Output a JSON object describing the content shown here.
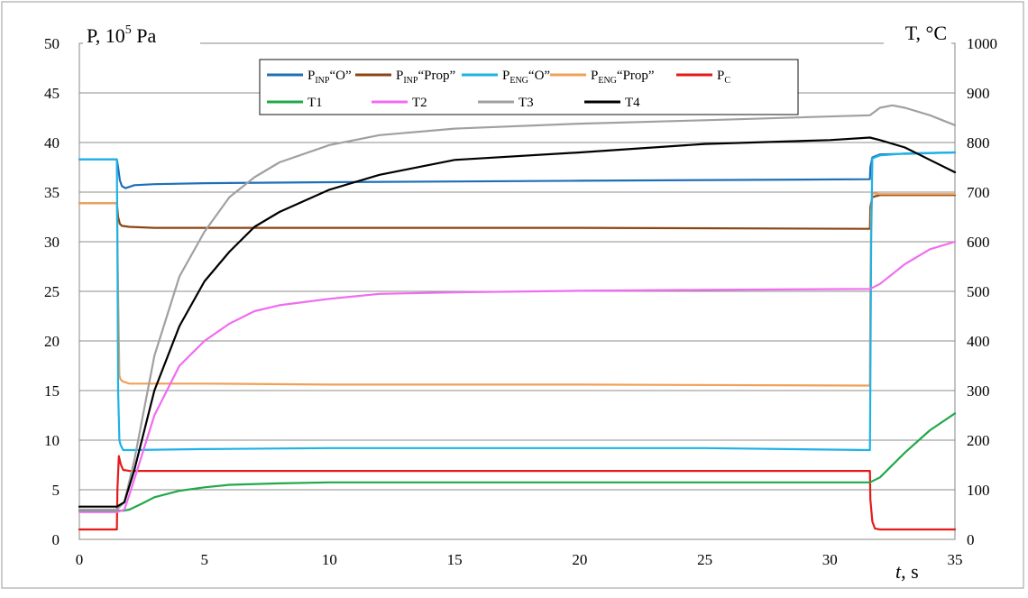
{
  "chart_data": {
    "type": "line",
    "title": "",
    "xlabel": {
      "italic": "t",
      "rest": ", s"
    },
    "ylabel_left": {
      "main": "P, 10",
      "sup": "5",
      "unit": " Pa"
    },
    "ylabel_right": "T, °C",
    "xlim": [
      0,
      35
    ],
    "ylim_left": [
      0,
      50
    ],
    "ylim_right": [
      0,
      1000
    ],
    "x_ticks": [
      "0",
      "5",
      "10",
      "15",
      "20",
      "25",
      "30"
    ],
    "x_tick_last": "35",
    "y_ticks_left": [
      "0",
      "5",
      "10",
      "15",
      "20",
      "25",
      "30",
      "35",
      "40",
      "45",
      "50"
    ],
    "y_ticks_right": [
      "0",
      "100",
      "200",
      "300",
      "400",
      "500",
      "600",
      "700",
      "800",
      "900",
      "1000"
    ],
    "grid": {
      "horizontal": true,
      "vertical": false
    },
    "legend_position": "top-center",
    "series": [
      {
        "name": "P_INP “O”",
        "label_main": "P",
        "label_sub": "INP",
        "label_tail": "“O”",
        "axis": "left",
        "color": "#1F6FB8",
        "x": [
          0,
          1.5,
          1.55,
          1.62,
          1.7,
          1.85,
          2.2,
          3,
          5,
          10,
          20,
          31.6,
          31.62,
          31.7,
          32,
          35
        ],
        "y": [
          38.3,
          38.3,
          37.5,
          36.2,
          35.6,
          35.4,
          35.7,
          35.8,
          35.9,
          36.0,
          36.15,
          36.3,
          37.5,
          38.5,
          38.8,
          39.0
        ]
      },
      {
        "name": "P_INP “Prop”",
        "label_main": "P",
        "label_sub": "INP",
        "label_tail": "“Prop”",
        "axis": "left",
        "color": "#8B4513",
        "x": [
          0,
          1.5,
          1.55,
          1.62,
          1.7,
          2.0,
          3,
          5,
          10,
          20,
          31.6,
          31.62,
          31.7,
          32,
          35
        ],
        "y": [
          33.9,
          33.9,
          32.5,
          31.8,
          31.6,
          31.5,
          31.4,
          31.4,
          31.4,
          31.4,
          31.3,
          33.5,
          34.5,
          34.7,
          34.7
        ]
      },
      {
        "name": "P_ENG “O”",
        "label_main": "P",
        "label_sub": "ENG",
        "label_tail": "“O”",
        "axis": "left",
        "color": "#1EB2E6",
        "x": [
          0,
          1.5,
          1.52,
          1.55,
          1.6,
          1.65,
          1.75,
          2.0,
          5,
          10,
          15,
          20,
          25,
          31.6,
          31.62,
          31.65,
          31.7,
          32,
          33,
          35
        ],
        "y": [
          38.3,
          38.3,
          30,
          15,
          10,
          9.5,
          9.0,
          9.0,
          9.1,
          9.2,
          9.2,
          9.2,
          9.2,
          9.0,
          16,
          30,
          38.4,
          38.7,
          38.9,
          39.0
        ]
      },
      {
        "name": "P_ENG “Prop”",
        "label_main": "P",
        "label_sub": "ENG",
        "label_tail": "“Prop”",
        "axis": "left",
        "color": "#F0A058",
        "x": [
          0,
          1.5,
          1.55,
          1.6,
          1.65,
          1.75,
          2.0,
          5,
          10,
          20,
          31.6,
          31.62,
          31.65,
          31.7,
          32,
          35
        ],
        "y": [
          33.9,
          33.9,
          25,
          16.5,
          16.1,
          15.9,
          15.7,
          15.7,
          15.6,
          15.6,
          15.5,
          25,
          33,
          34.9,
          34.8,
          34.8
        ]
      },
      {
        "name": "P_C",
        "label_main": "P",
        "label_sub": "C",
        "label_tail": "",
        "axis": "left",
        "color": "#E41A1A",
        "x": [
          0,
          1.5,
          1.52,
          1.58,
          1.65,
          1.75,
          2.0,
          5,
          31.6,
          31.62,
          31.7,
          31.8,
          32,
          35
        ],
        "y": [
          1.0,
          1.0,
          5,
          8.4,
          7.6,
          7.0,
          6.9,
          6.9,
          6.9,
          4,
          1.8,
          1.1,
          1.0,
          1.0
        ]
      },
      {
        "name": "T1",
        "label_main": "T1",
        "axis": "right",
        "color": "#22A84A",
        "x": [
          0,
          1.5,
          1.8,
          2.0,
          2.5,
          3,
          4,
          5,
          6,
          8,
          10,
          15,
          20,
          25,
          31.6,
          32,
          33,
          34,
          35
        ],
        "y": [
          58,
          58,
          58,
          60,
          72,
          85,
          98,
          105,
          110,
          113,
          115,
          115,
          115,
          115,
          115,
          125,
          175,
          220,
          254
        ]
      },
      {
        "name": "T2",
        "label_main": "T2",
        "axis": "right",
        "color": "#F06CF0",
        "x": [
          0,
          1.5,
          1.8,
          2.0,
          2.5,
          3,
          4,
          5,
          6,
          7,
          8,
          10,
          12,
          15,
          20,
          25,
          31.6,
          32,
          33,
          34,
          35
        ],
        "y": [
          55,
          55,
          60,
          90,
          170,
          250,
          350,
          400,
          435,
          460,
          472,
          485,
          495,
          498,
          501,
          503,
          505,
          515,
          555,
          585,
          600
        ]
      },
      {
        "name": "T3",
        "label_main": "T3",
        "axis": "right",
        "color": "#A0A0A0",
        "x": [
          0,
          1.5,
          1.8,
          2.2,
          3,
          4,
          5,
          6,
          7,
          8,
          10,
          12,
          15,
          20,
          25,
          31.6,
          32,
          32.5,
          33,
          34,
          35
        ],
        "y": [
          60,
          60,
          75,
          160,
          370,
          530,
          620,
          690,
          730,
          760,
          795,
          815,
          828,
          838,
          845,
          855,
          870,
          875,
          870,
          855,
          835
        ]
      },
      {
        "name": "T4",
        "label_main": "T4",
        "axis": "right",
        "color": "#000000",
        "x": [
          0,
          1.5,
          1.8,
          2.2,
          3,
          4,
          5,
          6,
          7,
          8,
          10,
          12,
          15,
          20,
          25,
          30,
          31.6,
          32,
          33,
          34,
          35
        ],
        "y": [
          66,
          66,
          75,
          140,
          300,
          430,
          520,
          580,
          630,
          660,
          705,
          735,
          765,
          780,
          797,
          805,
          810,
          805,
          790,
          765,
          740
        ]
      }
    ]
  }
}
